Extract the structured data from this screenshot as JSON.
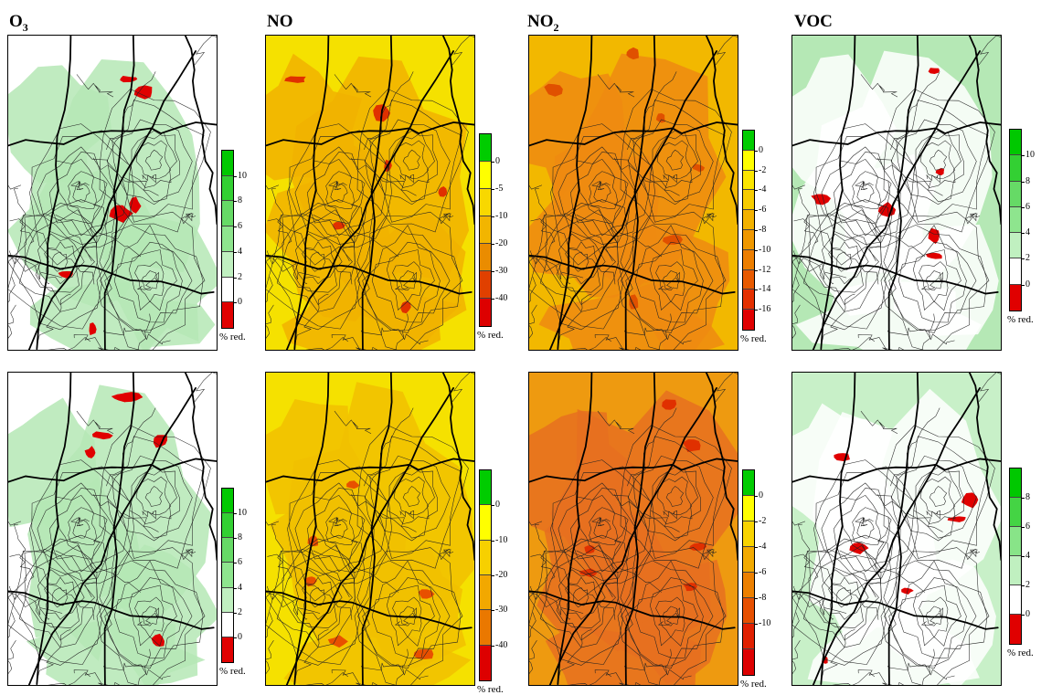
{
  "columns": [
    {
      "key": "o3",
      "title_main": "O",
      "title_sub": "3"
    },
    {
      "key": "no",
      "title_main": "NO",
      "title_sub": ""
    },
    {
      "key": "no2",
      "title_main": "NO",
      "title_sub": "2"
    },
    {
      "key": "voc",
      "title_main": "VOC",
      "title_sub": ""
    }
  ],
  "unit_label": "% red.",
  "panels": [
    {
      "id": "o3-top",
      "row": 0,
      "col": 0,
      "base_color": "#ffffff",
      "patch_color": "#b5e8b5",
      "hot_color": "#e00000",
      "colorbar": {
        "colors": [
          "#00c800",
          "#33d033",
          "#66da66",
          "#8ee58e",
          "#c0f0c0",
          "#ffffff",
          "#e00000"
        ],
        "ticks": [
          "10",
          "8",
          "6",
          "4",
          "2",
          "0"
        ]
      }
    },
    {
      "id": "no-top",
      "row": 0,
      "col": 1,
      "base_color": "#f5e100",
      "patch_color": "#f1b200",
      "hot_color": "#e03000",
      "colorbar": {
        "colors": [
          "#00cc00",
          "#ffff00",
          "#f8d800",
          "#f2b500",
          "#ea8c00",
          "#e04000",
          "#dd0000"
        ],
        "ticks": [
          "0",
          "-5",
          "-10",
          "-20",
          "-30",
          "-40"
        ]
      }
    },
    {
      "id": "no2-top",
      "row": 0,
      "col": 2,
      "base_color": "#f2b800",
      "patch_color": "#ee8a10",
      "hot_color": "#e05000",
      "colorbar": {
        "colors": [
          "#00cc00",
          "#ffff00",
          "#fbe600",
          "#f6cc00",
          "#f2b200",
          "#ef9800",
          "#ec7e00",
          "#e85a00",
          "#e43000",
          "#e00000"
        ],
        "ticks": [
          "0",
          "-2",
          "-4",
          "-6",
          "-8",
          "-10",
          "-12",
          "-14",
          "-16"
        ]
      }
    },
    {
      "id": "voc-top",
      "row": 0,
      "col": 3,
      "base_color": "#b5e8b5",
      "patch_color": "#ffffff",
      "hot_color": "#e00000",
      "colorbar": {
        "colors": [
          "#00c800",
          "#33d033",
          "#66da66",
          "#8ee58e",
          "#c0f0c0",
          "#ffffff",
          "#e00000"
        ],
        "ticks": [
          "10",
          "8",
          "6",
          "4",
          "2",
          "0"
        ]
      }
    },
    {
      "id": "o3-bottom",
      "row": 1,
      "col": 0,
      "base_color": "#ffffff",
      "patch_color": "#b5e8b5",
      "hot_color": "#e00000",
      "colorbar": {
        "colors": [
          "#00c800",
          "#33d033",
          "#66da66",
          "#8ee58e",
          "#c0f0c0",
          "#ffffff",
          "#e00000"
        ],
        "ticks": [
          "10",
          "8",
          "6",
          "4",
          "2",
          "0"
        ]
      }
    },
    {
      "id": "no-bottom",
      "row": 1,
      "col": 1,
      "base_color": "#f5e100",
      "patch_color": "#f1c000",
      "hot_color": "#e85000",
      "colorbar": {
        "colors": [
          "#00cc00",
          "#ffff00",
          "#f7d000",
          "#f2a800",
          "#ea7800",
          "#dd0000"
        ],
        "ticks": [
          "0",
          "-10",
          "-20",
          "-30",
          "-40"
        ]
      }
    },
    {
      "id": "no2-bottom",
      "row": 1,
      "col": 2,
      "base_color": "#ee9a10",
      "patch_color": "#e67020",
      "hot_color": "#e03000",
      "colorbar": {
        "colors": [
          "#00cc00",
          "#ffff00",
          "#f8d400",
          "#f2aa00",
          "#ec8000",
          "#e65000",
          "#e02000",
          "#dd0000"
        ],
        "ticks": [
          "0",
          "-2",
          "-4",
          "-6",
          "-8",
          "-10"
        ]
      }
    },
    {
      "id": "voc-bottom",
      "row": 1,
      "col": 3,
      "base_color": "#c8f0c8",
      "patch_color": "#ffffff",
      "hot_color": "#e00000",
      "colorbar": {
        "colors": [
          "#00c800",
          "#44d444",
          "#88e488",
          "#c0f0c0",
          "#ffffff",
          "#e00000"
        ],
        "ticks": [
          "8",
          "6",
          "4",
          "2",
          "0"
        ]
      }
    }
  ]
}
